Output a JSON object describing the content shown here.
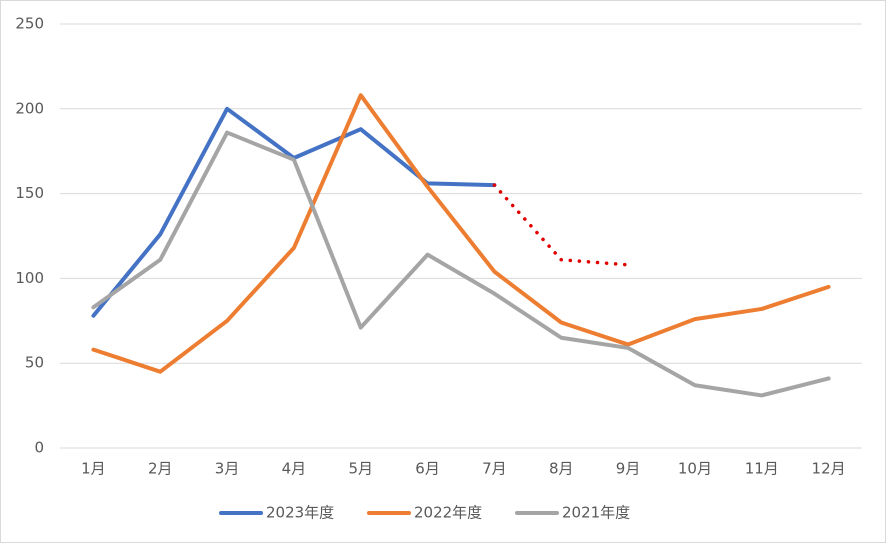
{
  "chart_data": {
    "type": "line",
    "categories": [
      "1月",
      "2月",
      "3月",
      "4月",
      "5月",
      "6月",
      "7月",
      "8月",
      "9月",
      "10月",
      "11月",
      "12月"
    ],
    "series": [
      {
        "name": "2023年度",
        "color": "#4472c4",
        "values": [
          78,
          126,
          200,
          171,
          188,
          156,
          155,
          null,
          null,
          null,
          null,
          null
        ]
      },
      {
        "name": "2022年度",
        "color": "#ed7d31",
        "values": [
          58,
          45,
          75,
          118,
          208,
          154,
          104,
          74,
          61,
          76,
          82,
          95
        ]
      },
      {
        "name": "2021年度",
        "color": "#a5a5a5",
        "values": [
          83,
          111,
          186,
          170,
          71,
          114,
          91,
          65,
          59,
          37,
          31,
          41
        ]
      },
      {
        "color": "#e00000",
        "dash": "dotted",
        "values": [
          null,
          null,
          null,
          null,
          null,
          null,
          155,
          111,
          108,
          null,
          null,
          null
        ]
      }
    ],
    "ylim": [
      0,
      250
    ],
    "yticks": [
      0,
      50,
      100,
      150,
      200,
      250
    ],
    "grid": true,
    "legend": "bottom"
  }
}
